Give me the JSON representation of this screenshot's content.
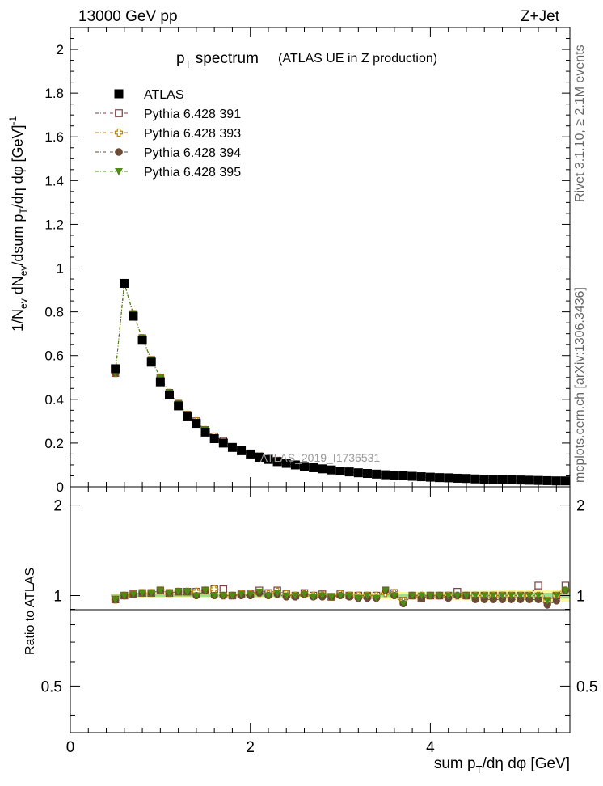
{
  "header": {
    "left": "13000 GeV pp",
    "right": "Z+Jet"
  },
  "side_text": {
    "rivet": "Rivet 3.1.10, ≥ 2.1M events",
    "mcplots": "mcplots.cern.ch [arXiv:1306.3436]"
  },
  "watermark": "ATLAS_2019_I1736531",
  "colors": {
    "atlas": "#000000",
    "p391": "#7b3f3f",
    "p393": "#b8860b",
    "p394": "#6b4a36",
    "p395": "#4f8c14",
    "band_yellow": "#fdf99a",
    "band_green": "#9be08f"
  },
  "chart_data": [
    {
      "type": "scatter",
      "panel": "main",
      "title_main": "p",
      "title_sub": "T",
      "title_rest": " spectrum",
      "title_note": "(ATLAS UE in Z production)",
      "ylabel": "1/N_ev dN_ev/dsum p_T/dη dφ [GeV]^-1",
      "ylabel_parts": {
        "a": "1/N",
        "a_sub": "ev",
        "b": " dN",
        "b_sub": "ev",
        "c": "/dsum p",
        "c_sub": "T",
        "d": "/dη dφ  [GeV]",
        "d_sup": "-1"
      },
      "xlim": [
        0,
        5.55
      ],
      "ylim": [
        0,
        2.1
      ],
      "yticks": [
        "0",
        "0.2",
        "0.4",
        "0.6",
        "0.8",
        "1",
        "1.2",
        "1.4",
        "1.6",
        "1.8",
        "2"
      ],
      "x": [
        0.5,
        0.6,
        0.7,
        0.8,
        0.9,
        1.0,
        1.1,
        1.2,
        1.3,
        1.4,
        1.5,
        1.6,
        1.7,
        1.8,
        1.9,
        2.0,
        2.1,
        2.2,
        2.3,
        2.4,
        2.5,
        2.6,
        2.7,
        2.8,
        2.9,
        3.0,
        3.1,
        3.2,
        3.3,
        3.4,
        3.5,
        3.6,
        3.7,
        3.8,
        3.9,
        4.0,
        4.1,
        4.2,
        4.3,
        4.4,
        4.5,
        4.6,
        4.7,
        4.8,
        4.9,
        5.0,
        5.1,
        5.2,
        5.3,
        5.4,
        5.5
      ],
      "series": [
        {
          "name": "ATLAS",
          "marker": "square-filled",
          "values": [
            0.54,
            0.93,
            0.78,
            0.67,
            0.57,
            0.48,
            0.42,
            0.37,
            0.32,
            0.29,
            0.25,
            0.22,
            0.2,
            0.18,
            0.165,
            0.15,
            0.135,
            0.125,
            0.115,
            0.107,
            0.1,
            0.093,
            0.087,
            0.082,
            0.077,
            0.072,
            0.068,
            0.064,
            0.061,
            0.058,
            0.055,
            0.052,
            0.05,
            0.048,
            0.046,
            0.044,
            0.042,
            0.041,
            0.039,
            0.038,
            0.036,
            0.035,
            0.034,
            0.033,
            0.032,
            0.031,
            0.03,
            0.029,
            0.028,
            0.027,
            0.027
          ]
        },
        {
          "name": "Pythia 6.428 391",
          "marker": "square-open",
          "values": [
            0.52,
            0.93,
            0.79,
            0.68,
            0.58,
            0.5,
            0.43,
            0.38,
            0.33,
            0.3,
            0.26,
            0.23,
            0.21,
            0.18,
            0.167,
            0.152,
            0.14,
            0.127,
            0.12,
            0.108,
            0.1,
            0.095,
            0.087,
            0.083,
            0.076,
            0.073,
            0.068,
            0.064,
            0.061,
            0.058,
            0.057,
            0.053,
            0.048,
            0.048,
            0.045,
            0.044,
            0.042,
            0.041,
            0.04,
            0.038,
            0.036,
            0.035,
            0.034,
            0.033,
            0.032,
            0.031,
            0.03,
            0.03,
            0.027,
            0.027,
            0.028
          ]
        },
        {
          "name": "Pythia 6.428 393",
          "marker": "cross-open",
          "values": [
            0.52,
            0.93,
            0.79,
            0.68,
            0.58,
            0.5,
            0.43,
            0.38,
            0.33,
            0.3,
            0.26,
            0.23,
            0.2,
            0.18,
            0.166,
            0.151,
            0.138,
            0.126,
            0.118,
            0.108,
            0.1,
            0.094,
            0.087,
            0.082,
            0.076,
            0.073,
            0.068,
            0.064,
            0.061,
            0.058,
            0.056,
            0.053,
            0.048,
            0.048,
            0.046,
            0.044,
            0.042,
            0.041,
            0.039,
            0.038,
            0.036,
            0.035,
            0.034,
            0.033,
            0.032,
            0.031,
            0.03,
            0.029,
            0.027,
            0.027,
            0.028
          ]
        },
        {
          "name": "Pythia 6.428 394",
          "marker": "circle-filled",
          "values": [
            0.52,
            0.93,
            0.79,
            0.68,
            0.58,
            0.5,
            0.43,
            0.38,
            0.33,
            0.29,
            0.26,
            0.22,
            0.2,
            0.18,
            0.165,
            0.15,
            0.138,
            0.125,
            0.116,
            0.106,
            0.099,
            0.094,
            0.086,
            0.081,
            0.076,
            0.072,
            0.067,
            0.063,
            0.06,
            0.057,
            0.057,
            0.052,
            0.047,
            0.048,
            0.045,
            0.044,
            0.042,
            0.04,
            0.039,
            0.038,
            0.035,
            0.034,
            0.033,
            0.032,
            0.031,
            0.03,
            0.029,
            0.028,
            0.026,
            0.026,
            0.028
          ]
        },
        {
          "name": "Pythia 6.428 395",
          "marker": "triangle-down-filled",
          "values": [
            0.52,
            0.93,
            0.79,
            0.68,
            0.58,
            0.5,
            0.43,
            0.38,
            0.33,
            0.29,
            0.26,
            0.22,
            0.2,
            0.18,
            0.166,
            0.151,
            0.139,
            0.125,
            0.117,
            0.107,
            0.1,
            0.094,
            0.086,
            0.082,
            0.076,
            0.072,
            0.068,
            0.063,
            0.061,
            0.057,
            0.057,
            0.052,
            0.047,
            0.048,
            0.046,
            0.044,
            0.042,
            0.041,
            0.039,
            0.038,
            0.036,
            0.035,
            0.034,
            0.033,
            0.032,
            0.031,
            0.03,
            0.029,
            0.027,
            0.027,
            0.028
          ]
        }
      ]
    },
    {
      "type": "scatter",
      "panel": "ratio",
      "ylabel": "Ratio to ATLAS",
      "xlabel_parts": {
        "a": "sum p",
        "a_sub": "T",
        "b": "/dη dφ [GeV]"
      },
      "xlim": [
        0,
        5.55
      ],
      "ylim": [
        0.35,
        2.3
      ],
      "xticks": [
        "0",
        "2",
        "4"
      ],
      "yticks": [
        "0.5",
        "1",
        "2"
      ],
      "band_green_halfwidth": [
        0.01,
        0.01,
        0.01,
        0.01,
        0.01,
        0.01,
        0.01,
        0.01,
        0.01,
        0.01,
        0.01,
        0.01,
        0.01,
        0.01,
        0.01,
        0.01,
        0.01,
        0.01,
        0.01,
        0.01,
        0.01,
        0.01,
        0.01,
        0.01,
        0.01,
        0.012,
        0.012,
        0.012,
        0.012,
        0.013,
        0.013,
        0.013,
        0.014,
        0.014,
        0.015,
        0.015,
        0.016,
        0.016,
        0.017,
        0.017,
        0.018,
        0.018,
        0.019,
        0.019,
        0.02,
        0.02,
        0.021,
        0.021,
        0.022,
        0.022,
        0.023
      ],
      "band_yellow_halfwidth": [
        0.015,
        0.015,
        0.015,
        0.015,
        0.015,
        0.015,
        0.015,
        0.015,
        0.015,
        0.015,
        0.015,
        0.015,
        0.015,
        0.015,
        0.015,
        0.015,
        0.016,
        0.016,
        0.017,
        0.017,
        0.018,
        0.018,
        0.019,
        0.02,
        0.021,
        0.022,
        0.023,
        0.024,
        0.025,
        0.026,
        0.027,
        0.028,
        0.029,
        0.03,
        0.031,
        0.032,
        0.033,
        0.034,
        0.035,
        0.036,
        0.037,
        0.038,
        0.039,
        0.04,
        0.041,
        0.042,
        0.043,
        0.044,
        0.045,
        0.046,
        0.047
      ],
      "series": [
        {
          "name": "Pythia 6.428 391",
          "values": [
            0.97,
            1.0,
            1.01,
            1.02,
            1.02,
            1.04,
            1.02,
            1.03,
            1.03,
            1.03,
            1.04,
            1.05,
            1.05,
            1.0,
            1.01,
            1.01,
            1.04,
            1.02,
            1.04,
            1.01,
            1.0,
            1.02,
            1.0,
            1.01,
            0.99,
            1.01,
            1.0,
            1.0,
            1.0,
            1.0,
            1.04,
            1.02,
            0.96,
            1.0,
            0.98,
            1.0,
            1.0,
            1.0,
            1.03,
            1.0,
            1.0,
            1.0,
            1.0,
            1.0,
            1.0,
            1.0,
            1.0,
            1.08,
            0.96,
            1.0,
            1.08
          ]
        },
        {
          "name": "Pythia 6.428 393",
          "values": [
            0.97,
            1.0,
            1.01,
            1.02,
            1.02,
            1.04,
            1.02,
            1.03,
            1.03,
            1.03,
            1.04,
            1.05,
            1.0,
            1.0,
            1.01,
            1.01,
            1.02,
            1.01,
            1.03,
            1.01,
            1.0,
            1.01,
            1.0,
            1.0,
            0.99,
            1.01,
            1.0,
            1.0,
            1.0,
            1.0,
            1.02,
            1.02,
            0.96,
            1.0,
            1.0,
            1.0,
            1.0,
            1.0,
            1.0,
            1.0,
            1.0,
            1.0,
            1.0,
            1.0,
            1.0,
            1.0,
            1.0,
            1.0,
            0.96,
            1.0,
            1.04
          ]
        },
        {
          "name": "Pythia 6.428 394",
          "values": [
            0.97,
            1.0,
            1.01,
            1.02,
            1.02,
            1.04,
            1.02,
            1.03,
            1.03,
            1.0,
            1.04,
            1.0,
            1.0,
            1.0,
            1.0,
            1.0,
            1.02,
            1.0,
            1.01,
            0.99,
            0.99,
            1.01,
            0.99,
            0.99,
            0.99,
            1.0,
            0.99,
            0.98,
            0.98,
            0.98,
            1.04,
            1.0,
            0.94,
            1.0,
            0.98,
            1.0,
            1.0,
            0.98,
            1.0,
            1.0,
            0.97,
            0.97,
            0.97,
            0.97,
            0.97,
            0.97,
            0.97,
            0.97,
            0.93,
            0.96,
            1.04
          ]
        },
        {
          "name": "Pythia 6.428 395",
          "values": [
            0.97,
            1.0,
            1.01,
            1.02,
            1.02,
            1.04,
            1.02,
            1.03,
            1.03,
            1.0,
            1.04,
            1.0,
            1.0,
            1.0,
            1.01,
            1.01,
            1.03,
            1.0,
            1.02,
            1.0,
            1.0,
            1.01,
            0.99,
            1.0,
            0.99,
            1.0,
            1.0,
            0.98,
            1.0,
            0.98,
            1.04,
            1.0,
            0.94,
            1.0,
            1.0,
            1.0,
            1.0,
            1.0,
            1.0,
            1.0,
            1.0,
            1.0,
            1.0,
            1.0,
            1.0,
            1.0,
            1.0,
            1.0,
            0.96,
            1.0,
            1.04
          ]
        }
      ]
    }
  ]
}
